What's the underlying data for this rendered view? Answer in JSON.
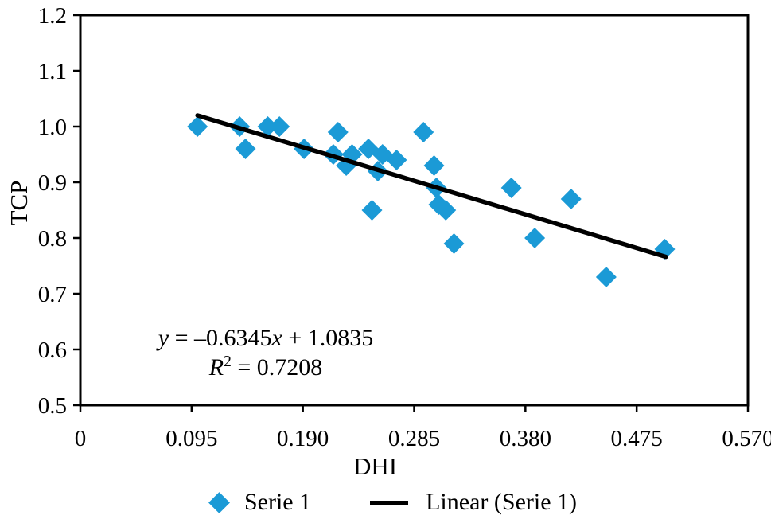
{
  "figure": {
    "legend": {
      "series_label": "Serie 1",
      "trend_label": "Linear (Serie 1)"
    },
    "annotation": {
      "line1_parts": [
        "y",
        " = –0.6345",
        "x",
        " + 1.0835"
      ],
      "line2_parts": [
        "R",
        "2",
        " = 0.7208"
      ]
    }
  },
  "chart_data": {
    "type": "scatter",
    "title": "",
    "xlabel": "DHI",
    "ylabel": "TCP",
    "xlim": [
      0,
      0.57
    ],
    "ylim": [
      0.5,
      1.2
    ],
    "x_ticks": [
      "0",
      "0.095",
      "0.190",
      "0.285",
      "0.380",
      "0.475",
      "0.570"
    ],
    "y_ticks": [
      "1.2",
      "1.1",
      "1.0",
      "0.9",
      "0.8",
      "0.7",
      "0.6",
      "0.5"
    ],
    "grid": false,
    "legend_position": "bottom",
    "series": [
      {
        "name": "Serie 1",
        "marker": "diamond",
        "color": "#1B9AD6",
        "points": [
          [
            0.1,
            1.0
          ],
          [
            0.136,
            1.0
          ],
          [
            0.141,
            0.96
          ],
          [
            0.16,
            1.0
          ],
          [
            0.17,
            1.0
          ],
          [
            0.191,
            0.96
          ],
          [
            0.22,
            0.99
          ],
          [
            0.216,
            0.95
          ],
          [
            0.232,
            0.95
          ],
          [
            0.227,
            0.93
          ],
          [
            0.246,
            0.96
          ],
          [
            0.258,
            0.95
          ],
          [
            0.27,
            0.94
          ],
          [
            0.254,
            0.92
          ],
          [
            0.249,
            0.85
          ],
          [
            0.293,
            0.99
          ],
          [
            0.302,
            0.93
          ],
          [
            0.304,
            0.89
          ],
          [
            0.306,
            0.86
          ],
          [
            0.312,
            0.85
          ],
          [
            0.319,
            0.79
          ],
          [
            0.368,
            0.89
          ],
          [
            0.388,
            0.8
          ],
          [
            0.419,
            0.87
          ],
          [
            0.449,
            0.73
          ],
          [
            0.499,
            0.78
          ]
        ]
      }
    ],
    "trendline": {
      "name": "Linear (Serie 1)",
      "slope": -0.6345,
      "intercept": 1.0835,
      "x_start": 0.1,
      "x_end": 0.5,
      "color": "#000000",
      "equation": "y = –0.6345x + 1.0835",
      "r_squared": "R² = 0.7208"
    }
  }
}
